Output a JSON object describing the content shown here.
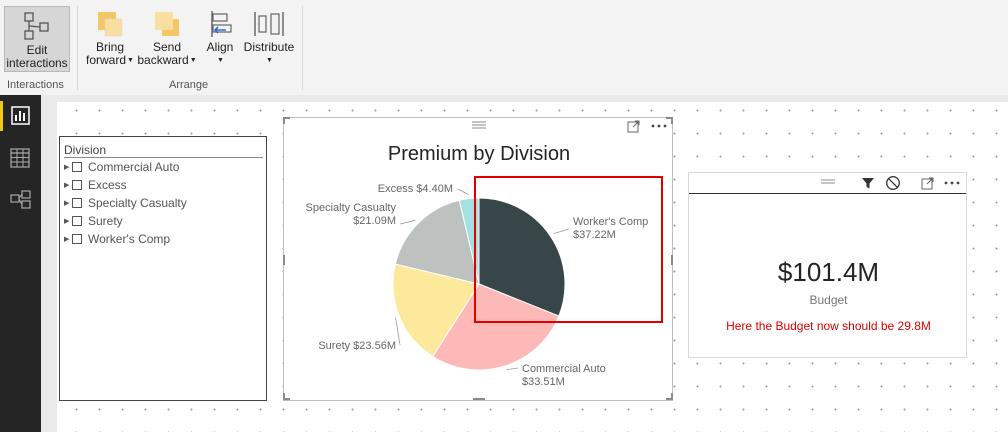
{
  "ribbon": {
    "buttons": {
      "edit_interactions": {
        "line1": "Edit",
        "line2": "interactions"
      },
      "bring_forward": {
        "line1": "Bring",
        "line2": "forward"
      },
      "send_backward": {
        "line1": "Send",
        "line2": "backward"
      },
      "align": {
        "line1": "Align"
      },
      "distribute": {
        "line1": "Distribute"
      }
    },
    "groups": {
      "interactions": "Interactions",
      "arrange": "Arrange"
    }
  },
  "nav": {
    "items": [
      "report-view-icon",
      "data-view-icon",
      "relationships-view-icon"
    ],
    "active": 0
  },
  "slicer": {
    "title": "Division",
    "items": [
      "Commercial Auto",
      "Excess",
      "Specialty Casualty",
      "Surety",
      "Worker's Comp"
    ]
  },
  "pie_visual": {
    "title": "Premium by Division"
  },
  "chart_data": {
    "type": "pie",
    "title": "Premium by Division",
    "slices": [
      {
        "name": "Worker's Comp",
        "label": "$37.22M",
        "value": 37.22,
        "color": "#374649"
      },
      {
        "name": "Commercial Auto",
        "label": "$33.51M",
        "value": 33.51,
        "color": "#fd b8b8"
      },
      {
        "name": "Surety",
        "label": "$23.56M",
        "value": 23.56,
        "color": "#fce99c"
      },
      {
        "name": "Specialty Casualty",
        "label": "$21.09M",
        "value": 21.09,
        "color": "#bdc2c1"
      },
      {
        "name": "Excess",
        "label": "$4.40M",
        "value": 4.4,
        "color": "#a3e2e0"
      }
    ]
  },
  "card": {
    "value": "$101.4M",
    "label": "Budget",
    "note": "Here the Budget now should be 29.8M"
  },
  "colors": {
    "accent": "#f2c811",
    "annotation": "#e00000"
  }
}
